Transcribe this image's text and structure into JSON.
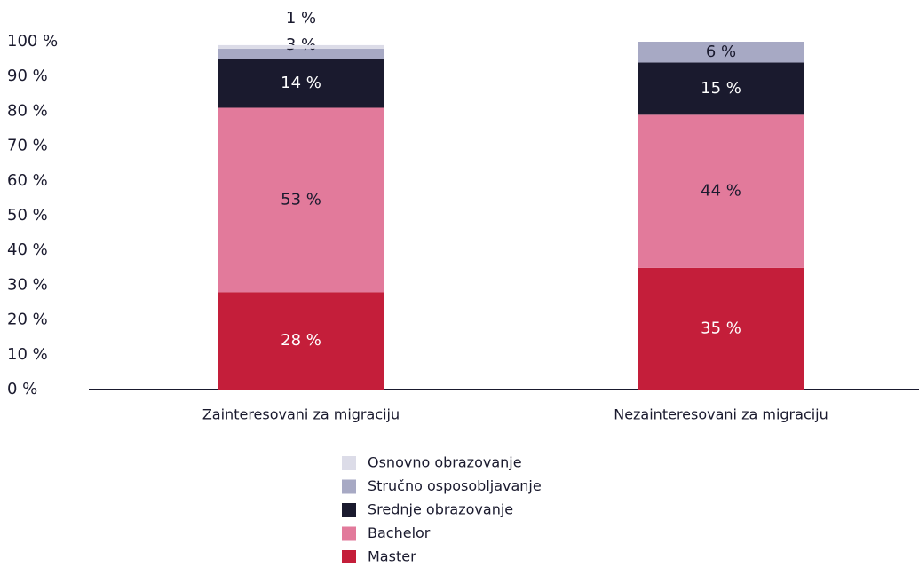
{
  "chart_data": {
    "type": "stacked-bar",
    "categories": [
      "Zainteresovani za migraciju",
      "Nezainteresovani za migraciju"
    ],
    "series": [
      {
        "name": "Master",
        "color": "#c41e3a",
        "values": [
          28,
          35
        ],
        "value_labels": [
          "28 %",
          "35 %"
        ]
      },
      {
        "name": "Bachelor",
        "color": "#e27a9b",
        "values": [
          53,
          44
        ],
        "value_labels": [
          "53 %",
          "44 %"
        ]
      },
      {
        "name": "Srednje obrazovanje",
        "color": "#1a1a2e",
        "values": [
          14,
          15
        ],
        "value_labels": [
          "14 %",
          "15 %"
        ]
      },
      {
        "name": "Stručno osposobljavanje",
        "color": "#a7a9c4",
        "values": [
          3,
          6
        ],
        "value_labels": [
          "3 %",
          "6 %"
        ]
      },
      {
        "name": "Osnovno obrazovanje",
        "color": "#dcdce8",
        "values": [
          1,
          null
        ],
        "value_labels": [
          "1 %",
          null
        ]
      }
    ],
    "ylim": [
      0,
      100
    ],
    "yticks": [
      {
        "value": 0,
        "label": "0 %"
      },
      {
        "value": 10,
        "label": "10 %"
      },
      {
        "value": 20,
        "label": "20 %"
      },
      {
        "value": 30,
        "label": "30 %"
      },
      {
        "value": 40,
        "label": "40 %"
      },
      {
        "value": 50,
        "label": "50 %"
      },
      {
        "value": 60,
        "label": "60 %"
      },
      {
        "value": 70,
        "label": "70 %"
      },
      {
        "value": 80,
        "label": "80 %"
      },
      {
        "value": 90,
        "label": "90 %"
      },
      {
        "value": 100,
        "label": "100 %"
      }
    ],
    "legend": "bottom"
  }
}
